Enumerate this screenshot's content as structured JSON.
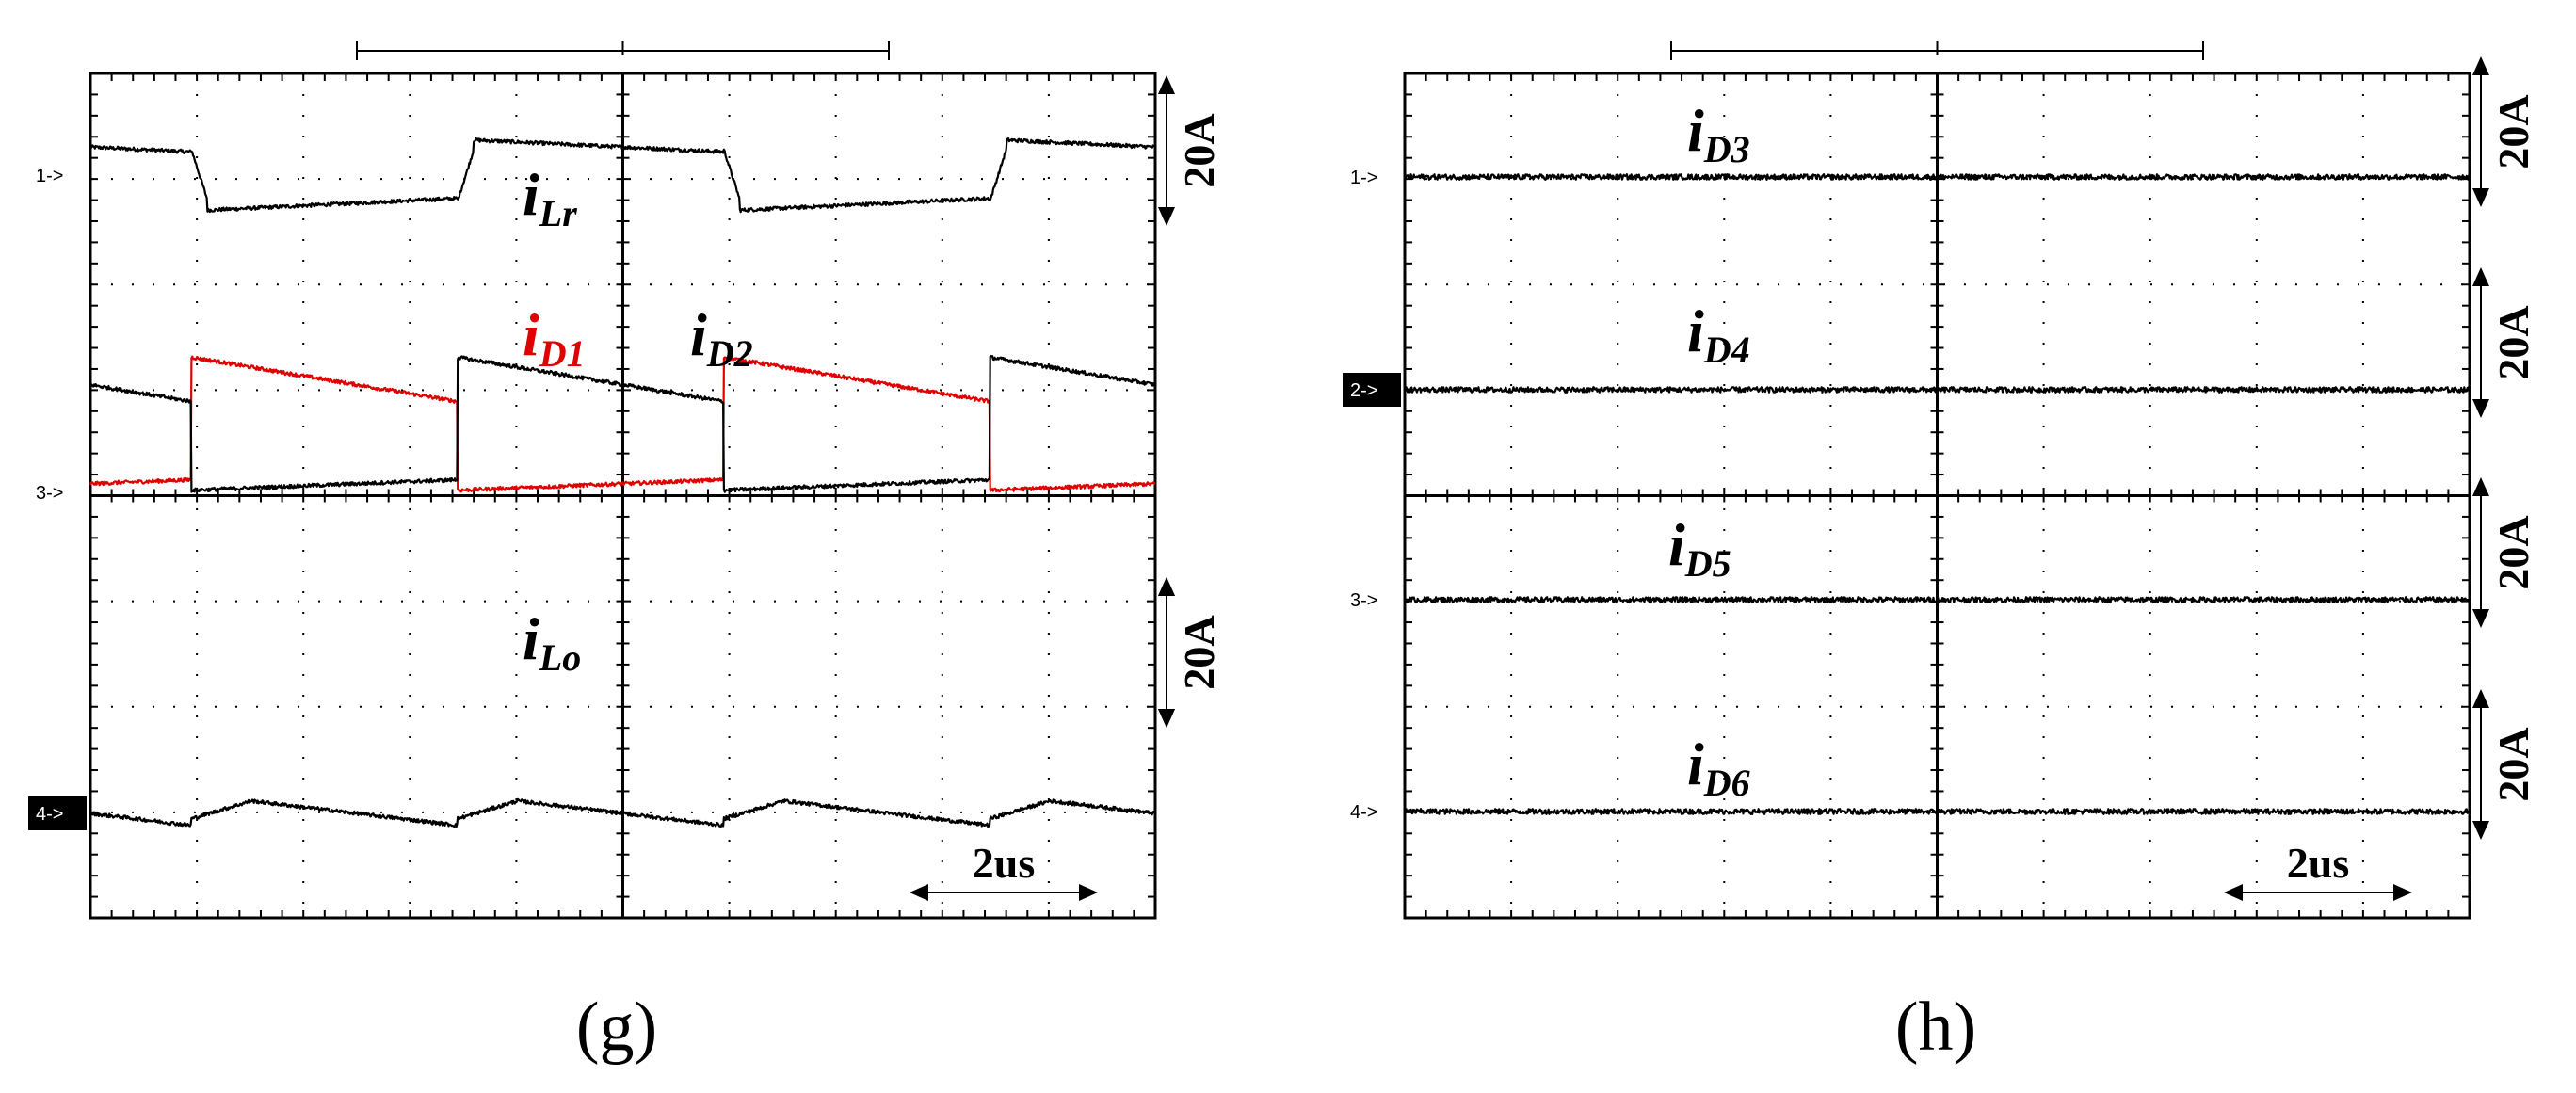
{
  "chart_data": [
    {
      "type": "line",
      "panel": "g",
      "caption": "(g)",
      "time_scale": "2us",
      "traces": [
        {
          "marker": "1->",
          "label": "i",
          "sub": "Lr",
          "color": "#000000",
          "scale": "20A",
          "pattern": "iLr",
          "start_phase": 0.31,
          "periods": 2
        },
        {
          "marker": "3->",
          "label": "i",
          "sub": "D1",
          "color": "#e00000",
          "scale": null,
          "pattern": "iD1",
          "start_phase": 0.31,
          "periods": 2
        },
        {
          "marker": "3->",
          "label": "i",
          "sub": "D2",
          "color": "#000000",
          "scale": "20A",
          "pattern": "iD2",
          "start_phase": 0.31,
          "periods": 2
        },
        {
          "marker": "4->",
          "label": "i",
          "sub": "Lo",
          "color": "#000000",
          "scale": "20A",
          "pattern": "iLo",
          "start_phase": 0.31,
          "periods": 2
        }
      ],
      "marker_labels": [
        "1->",
        "3->",
        "4->"
      ]
    },
    {
      "type": "line",
      "panel": "h",
      "caption": "(h)",
      "time_scale": "2us",
      "traces": [
        {
          "marker": "1->",
          "label": "i",
          "sub": "D3",
          "color": "#000000",
          "scale": "20A",
          "pattern": "flat"
        },
        {
          "marker": "2->",
          "label": "i",
          "sub": "D4",
          "color": "#000000",
          "scale": "20A",
          "pattern": "flat"
        },
        {
          "marker": "3->",
          "label": "i",
          "sub": "D5",
          "color": "#000000",
          "scale": "20A",
          "pattern": "flat"
        },
        {
          "marker": "4->",
          "label": "i",
          "sub": "D6",
          "color": "#000000",
          "scale": "20A",
          "pattern": "flat"
        }
      ],
      "marker_labels": [
        "1->",
        "2->",
        "3->",
        "4->"
      ]
    }
  ]
}
